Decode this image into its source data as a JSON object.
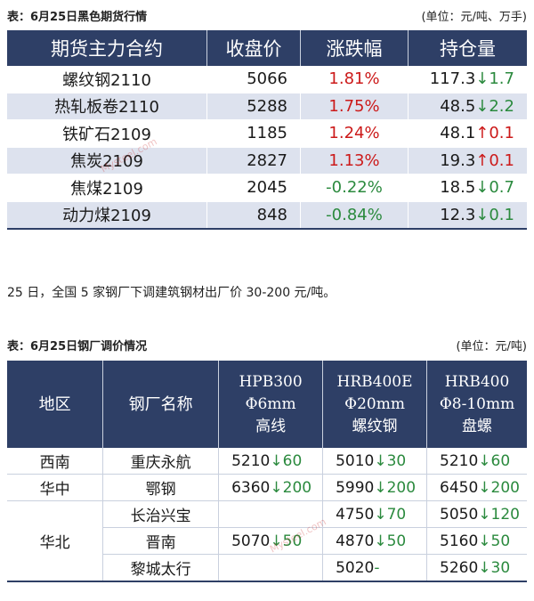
{
  "table1": {
    "caption": "表：6月25日黑色期货行情",
    "unit": "(单位：元/吨、万手)",
    "headers": [
      "期货主力合约",
      "收盘价",
      "涨跌幅",
      "持仓量"
    ],
    "rows": [
      {
        "contract": "螺纹钢2110",
        "close": "5066",
        "change": "1.81%",
        "oi": "117.3",
        "oi_arrow": "↓",
        "oi_delta": "1.7"
      },
      {
        "contract": "热轧板卷2110",
        "close": "5288",
        "change": "1.75%",
        "oi": "48.5",
        "oi_arrow": "↓",
        "oi_delta": "2.2"
      },
      {
        "contract": "铁矿石2109",
        "close": "1185",
        "change": "1.24%",
        "oi": "48.1",
        "oi_arrow": "↑",
        "oi_delta": "0.1"
      },
      {
        "contract": "焦炭2109",
        "close": "2827",
        "change": "1.13%",
        "oi": "19.3",
        "oi_arrow": "↑",
        "oi_delta": "0.1"
      },
      {
        "contract": "焦煤2109",
        "close": "2045",
        "change": "-0.22%",
        "oi": "18.5",
        "oi_arrow": "↓",
        "oi_delta": "0.7"
      },
      {
        "contract": "动力煤2109",
        "close": "848",
        "change": "-0.84%",
        "oi": "12.3",
        "oi_arrow": "↓",
        "oi_delta": "0.1"
      }
    ]
  },
  "note": "25 日，全国 5 家钢厂下调建筑钢材出厂价 30-200 元/吨。",
  "table2": {
    "caption": "表：6月25日钢厂调价情况",
    "unit": "(单位：元/吨)",
    "headers": {
      "region": "地区",
      "mill": "钢厂名称",
      "col1": [
        "HPB300",
        "Φ6mm",
        "高线"
      ],
      "col2": [
        "HRB400E",
        "Φ20mm",
        "螺纹钢"
      ],
      "col3": [
        "HRB400",
        "Φ8-10mm",
        "盘螺"
      ]
    },
    "regions": [
      "西南",
      "华中",
      "华北"
    ],
    "rows": [
      {
        "mill": "重庆永航",
        "c1": "5210",
        "c1_arrow": "↓",
        "c1_delta": "60",
        "c2": "5010",
        "c2_arrow": "↓",
        "c2_delta": "30",
        "c3": "5210",
        "c3_arrow": "↓",
        "c3_delta": "60"
      },
      {
        "mill": "鄂钢",
        "c1": "6360",
        "c1_arrow": "↓",
        "c1_delta": "200",
        "c2": "5990",
        "c2_arrow": "↓",
        "c2_delta": "200",
        "c3": "6450",
        "c3_arrow": "↓",
        "c3_delta": "200"
      },
      {
        "mill": "长治兴宝",
        "c1": "",
        "c1_arrow": "",
        "c1_delta": "",
        "c2": "4750",
        "c2_arrow": "↓",
        "c2_delta": "70",
        "c3": "5050",
        "c3_arrow": "↓",
        "c3_delta": "120"
      },
      {
        "mill": "晋南",
        "c1": "5070",
        "c1_arrow": "↓",
        "c1_delta": "50",
        "c2": "4870",
        "c2_arrow": "↓",
        "c2_delta": "50",
        "c3": "5160",
        "c3_arrow": "↓",
        "c3_delta": "50"
      },
      {
        "mill": "黎城太行",
        "c1": "",
        "c1_arrow": "",
        "c1_delta": "",
        "c2": "5020",
        "c2_arrow": "",
        "c2_delta": "-",
        "c3": "5260",
        "c3_arrow": "↓",
        "c3_delta": "30"
      }
    ]
  },
  "watermark": "Mysteel.com",
  "colors": {
    "header_bg": "#2e3f66",
    "stripe": "#dde2ee",
    "up": "#cc1a1a",
    "down": "#2b8a3e"
  }
}
